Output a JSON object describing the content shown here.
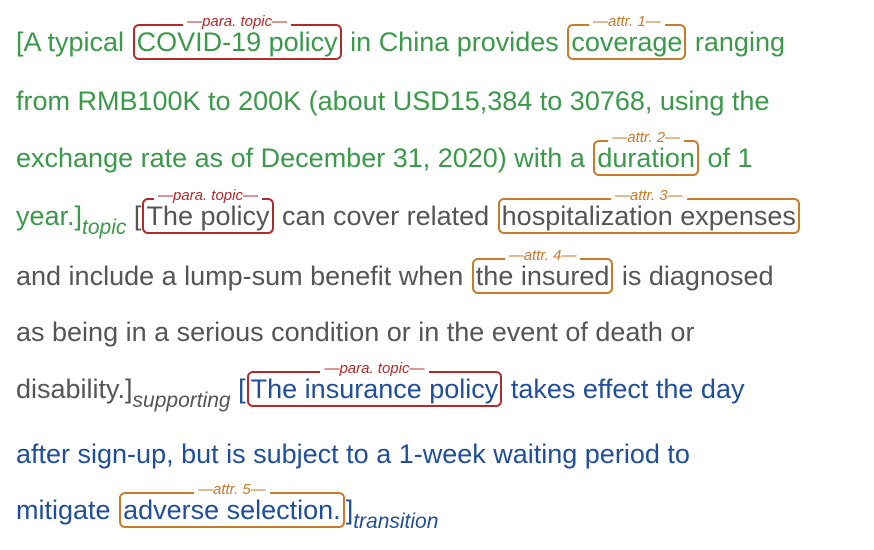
{
  "paragraph": {
    "topic": {
      "line1": {
        "pre": "[A typical",
        "box1": "COVID-19 policy",
        "mid": "in China provides",
        "box2": "coverage",
        "post": "ranging"
      },
      "line2": "from RMB100K to 200K (about USD15,384 to 30768, using the",
      "line3": {
        "pre": "exchange rate as of December 31, 2020) with a",
        "box": "duration",
        "post": "of 1"
      },
      "line4_pre": "year.]",
      "label": "topic"
    },
    "supporting": {
      "open": "[",
      "box1": "The policy",
      "mid": "can cover related",
      "box2": "hospitalization expenses",
      "line5": {
        "pre": "and include a lump-sum benefit when",
        "box": "the insured",
        "post": "is diagnosed"
      },
      "line6": "as being in a serious condition or in the event of death or",
      "line7_pre": "disability.]",
      "label": "supporting"
    },
    "transition": {
      "open": "[",
      "box1": "The insurance policy",
      "post1": "takes effect the day",
      "line8": "after sign-up, but is subject to a 1-week waiting period to",
      "line9": {
        "pre": "mitigate",
        "box": "adverse selection.",
        "post": "]"
      },
      "label": "transition"
    }
  },
  "annotations": {
    "para_topic": "para. topic",
    "attr1": "attr. 1",
    "attr2": "attr. 2",
    "attr3": "attr. 3",
    "attr4": "attr. 4",
    "attr5": "attr. 5"
  },
  "colors": {
    "topic": "#3a9a4a",
    "supporting": "#555555",
    "transition": "#1f4e9a",
    "para_topic_box": "#b32a2a",
    "attr_box": "#c97a2a"
  }
}
